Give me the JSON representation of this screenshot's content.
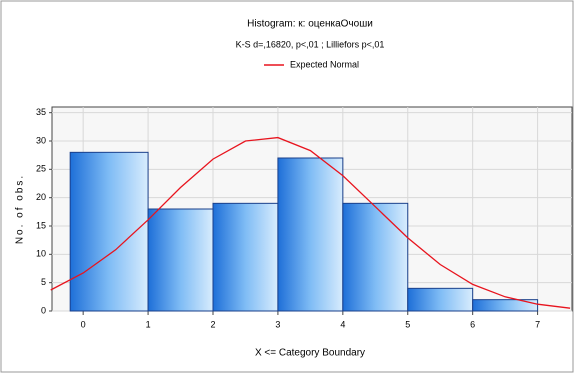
{
  "chart_data": {
    "type": "histogram",
    "title": "Histogram: к: оценкаОчоши",
    "subtitle": "K-S d=,16820, p<,01 ; Lilliefors p<,01",
    "xlabel": "X <= Category Boundary",
    "ylabel": "No. of obs.",
    "bins": [
      -0.2,
      1,
      2,
      3,
      4,
      5,
      6,
      7
    ],
    "counts": [
      28,
      18,
      19,
      27,
      19,
      4,
      2
    ],
    "color": "#3c8ce6",
    "xlim": [
      -0.48,
      7.53
    ],
    "ylim": [
      0,
      36
    ],
    "xticks": [
      0,
      1,
      2,
      3,
      4,
      5,
      6,
      7
    ],
    "yticks": [
      0,
      5,
      10,
      15,
      20,
      25,
      30,
      35
    ],
    "grid": true,
    "series": [
      {
        "name": "Expected Normal",
        "color": "#e8141e",
        "x": [
          -0.5,
          0,
          0.5,
          1,
          1.5,
          2,
          2.5,
          3,
          3.5,
          4,
          4.5,
          5,
          5.5,
          6,
          6.5,
          7,
          7.5
        ],
        "values": [
          3.7,
          6.7,
          10.8,
          16.1,
          21.8,
          26.8,
          30.0,
          30.6,
          28.3,
          23.9,
          18.4,
          12.9,
          8.2,
          4.7,
          2.5,
          1.2,
          0.5
        ]
      }
    ]
  }
}
